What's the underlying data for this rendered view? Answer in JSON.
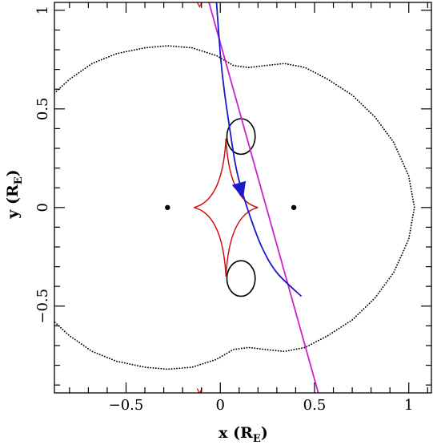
{
  "chart_data": {
    "type": "scatter",
    "title": "",
    "xlabel": {
      "main": "x (R",
      "sub": "E",
      "close": ")"
    },
    "ylabel": {
      "main": "y (R",
      "sub": "E",
      "close": ")"
    },
    "xlim": [
      -0.88,
      1.12
    ],
    "ylim": [
      -0.94,
      1.04
    ],
    "x_ticks": [
      {
        "value": -0.5,
        "label": "−0.5"
      },
      {
        "value": 0,
        "label": "0"
      },
      {
        "value": 0.5,
        "label": "0.5"
      },
      {
        "value": 1,
        "label": "1"
      }
    ],
    "y_ticks": [
      {
        "value": -0.5,
        "label": "−0.5"
      },
      {
        "value": 0,
        "label": "0"
      },
      {
        "value": 0.5,
        "label": "0.5"
      },
      {
        "value": 1,
        "label": "1"
      }
    ],
    "minor_tick_step": 0.1,
    "grid": false,
    "lens_masses": [
      {
        "x": -0.28,
        "y": 0.0
      },
      {
        "x": 0.39,
        "y": 0.0
      }
    ],
    "central_caustic": {
      "color": "#d01010",
      "center": [
        0.03,
        0.0
      ],
      "half_width": 0.17,
      "half_height": 0.35
    },
    "partial_caustic_marks": [
      {
        "x": -0.11,
        "y": 1.03
      },
      {
        "x": -0.11,
        "y": -0.93
      }
    ],
    "image_loops": [
      {
        "center": [
          0.11,
          0.36
        ],
        "rx": 0.075,
        "ry": 0.09
      },
      {
        "center": [
          0.11,
          -0.36
        ],
        "rx": 0.075,
        "ry": 0.09
      }
    ],
    "critical_curve": {
      "style": "dotted",
      "color": "#000000",
      "points": [
        [
          -0.88,
          0.58
        ],
        [
          -0.8,
          0.65
        ],
        [
          -0.68,
          0.73
        ],
        [
          -0.55,
          0.78
        ],
        [
          -0.4,
          0.81
        ],
        [
          -0.28,
          0.82
        ],
        [
          -0.15,
          0.81
        ],
        [
          -0.02,
          0.77
        ],
        [
          0.07,
          0.72
        ],
        [
          0.15,
          0.71
        ],
        [
          0.24,
          0.72
        ],
        [
          0.34,
          0.73
        ],
        [
          0.45,
          0.71
        ],
        [
          0.57,
          0.65
        ],
        [
          0.7,
          0.57
        ],
        [
          0.82,
          0.46
        ],
        [
          0.92,
          0.33
        ],
        [
          1.0,
          0.16
        ],
        [
          1.03,
          0.0
        ],
        [
          1.0,
          -0.16
        ],
        [
          0.92,
          -0.33
        ],
        [
          0.82,
          -0.46
        ],
        [
          0.7,
          -0.57
        ],
        [
          0.57,
          -0.65
        ],
        [
          0.45,
          -0.71
        ],
        [
          0.34,
          -0.73
        ],
        [
          0.24,
          -0.72
        ],
        [
          0.15,
          -0.71
        ],
        [
          0.07,
          -0.72
        ],
        [
          -0.02,
          -0.77
        ],
        [
          -0.15,
          -0.81
        ],
        [
          -0.28,
          -0.82
        ],
        [
          -0.4,
          -0.81
        ],
        [
          -0.55,
          -0.78
        ],
        [
          -0.68,
          -0.73
        ],
        [
          -0.8,
          -0.65
        ],
        [
          -0.88,
          -0.58
        ]
      ]
    },
    "series": [
      {
        "color": "#cc22cc",
        "style": "straight",
        "points": [
          [
            -0.06,
            1.04
          ],
          [
            0.52,
            -0.94
          ]
        ]
      },
      {
        "color": "#1a1acc",
        "style": "curved",
        "points": [
          [
            -0.02,
            1.04
          ],
          [
            0.0,
            0.78
          ],
          [
            0.02,
            0.6
          ],
          [
            0.05,
            0.4
          ],
          [
            0.08,
            0.22
          ],
          [
            0.11,
            0.1
          ],
          [
            0.16,
            -0.05
          ],
          [
            0.22,
            -0.2
          ],
          [
            0.3,
            -0.33
          ],
          [
            0.43,
            -0.45
          ]
        ],
        "arrow_at": [
          0.11,
          0.085
        ]
      }
    ]
  }
}
